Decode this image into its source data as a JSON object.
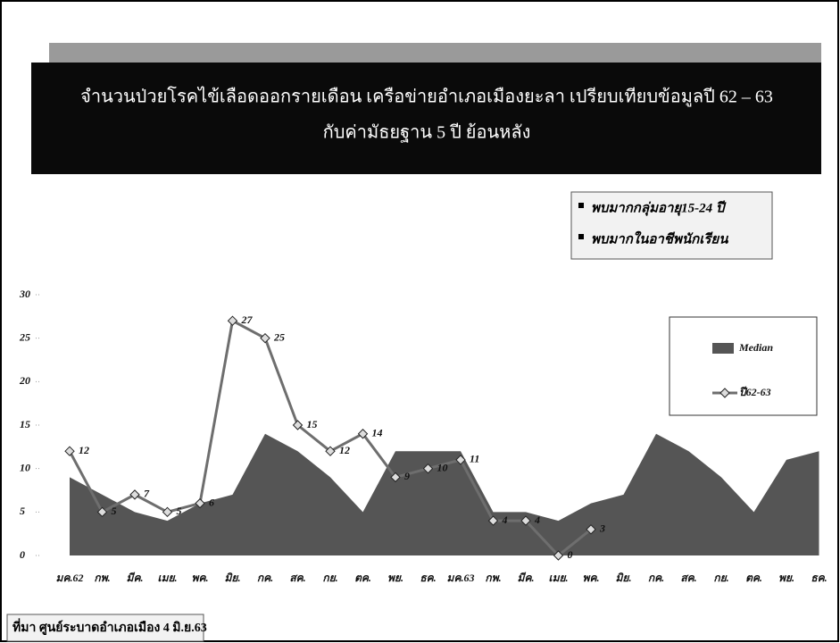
{
  "chart_data": {
    "type": "line",
    "title": [
      "จำนวนป่วยโรคไข้เลือดออกรายเดือน เครือข่ายอำเภอเมืองยะลา เปรียบเทียบข้อมูลปี 62 – 63",
      "กับค่ามัธยฐาน 5 ปี ย้อนหลัง"
    ],
    "notes": [
      "พบมากกลุ่มอายุ15-24 ปี",
      "พบมากในอาชีพนักเรียน"
    ],
    "source": "ที่มา ศูนย์ระบาดอำเภอเมือง 4 มิ.ย.63",
    "categories": [
      "มค.62",
      "กพ.",
      "มีค.",
      "เมย.",
      "พค.",
      "มิย.",
      "กค.",
      "สค.",
      "กย.",
      "ตค.",
      "พย.",
      "ธค.",
      "มค.63",
      "กพ.",
      "มีค.",
      "เมย.",
      "พค.",
      "มิย.",
      "กค.",
      "สค.",
      "กย.",
      "ตค.",
      "พย.",
      "ธค."
    ],
    "series": [
      {
        "name": "Median",
        "type": "area",
        "color": "#555555",
        "values": [
          9,
          7,
          5,
          4,
          6,
          7,
          14,
          12,
          9,
          5,
          12,
          12,
          12,
          5,
          5,
          4,
          6,
          7,
          14,
          12,
          9,
          5,
          11,
          12
        ]
      },
      {
        "name": "ปี62-63",
        "type": "line",
        "color": "#6e6e6e",
        "values": [
          12,
          5,
          7,
          5,
          6,
          27,
          25,
          15,
          12,
          14,
          9,
          10,
          11,
          4,
          4,
          0,
          3,
          null,
          null,
          null,
          null,
          null,
          null,
          null
        ]
      }
    ],
    "ylim": [
      0,
      30
    ],
    "yticks": [
      0,
      5,
      10,
      15,
      20,
      25,
      30
    ],
    "legend": "right"
  }
}
